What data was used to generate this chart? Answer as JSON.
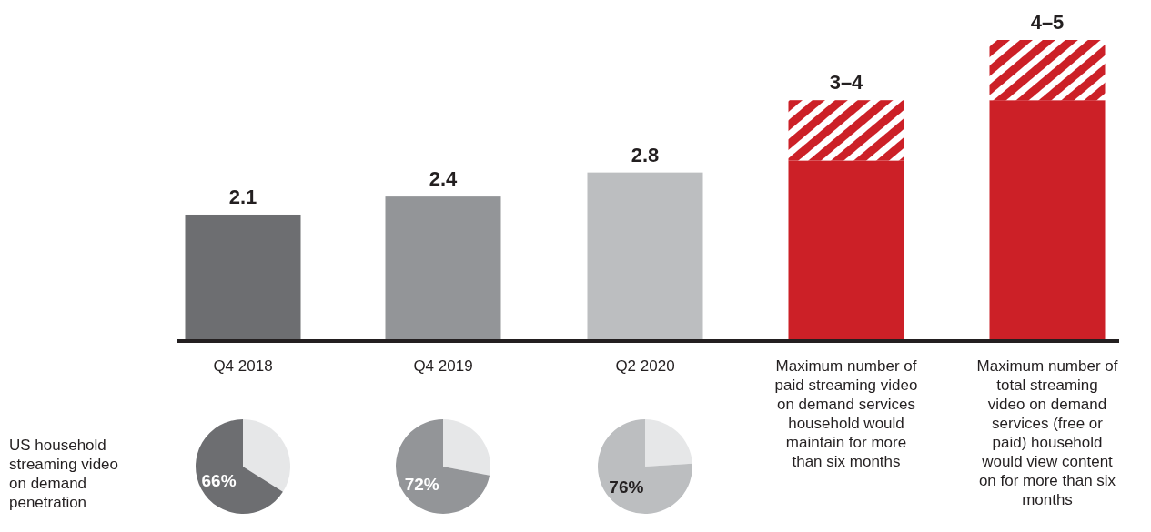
{
  "chart_data": [
    {
      "type": "bar",
      "stacked": true,
      "categories": [
        "Q4 2018",
        "Q4 2019",
        "Q2 2020",
        "Maximum number of paid streaming video on demand services household would maintain for more than six months",
        "Maximum number of total streaming video on demand services (free or paid) household would view content on for more than six months"
      ],
      "ylim": [
        0,
        5
      ],
      "tick_labels": "x",
      "series": [
        {
          "values": [
            2.1,
            2.4,
            2.8,
            3,
            4
          ],
          "value_labels": [
            "2.1",
            "2.4",
            "2.8",
            null,
            null
          ],
          "colors": [
            "#6d6e71",
            "#939598",
            "#bcbec0",
            "#cc2027",
            "#cc2027"
          ]
        },
        {
          "values": [
            null,
            null,
            null,
            1,
            1
          ],
          "value_labels": [
            null,
            null,
            null,
            "3–4",
            "4–5"
          ],
          "color": "#cc2027"
        }
      ]
    },
    {
      "type": "pie",
      "categories": [
        null,
        null
      ],
      "values": [
        34,
        66
      ],
      "colors": [
        "#e6e7e8",
        "#6d6e71"
      ],
      "value_labels": [
        null,
        "66%"
      ],
      "annotations": [
        "US household streaming video on demand penetration"
      ]
    },
    {
      "type": "pie",
      "categories": [
        null,
        null
      ],
      "values": [
        28,
        72
      ],
      "colors": [
        "#e6e7e8",
        "#939598"
      ],
      "value_labels": [
        null,
        "72%"
      ]
    },
    {
      "type": "pie",
      "categories": [
        null,
        null
      ],
      "values": [
        24,
        76
      ],
      "colors": [
        "#e6e7e8",
        "#bcbec0"
      ],
      "value_labels": [
        null,
        "76%"
      ]
    }
  ]
}
